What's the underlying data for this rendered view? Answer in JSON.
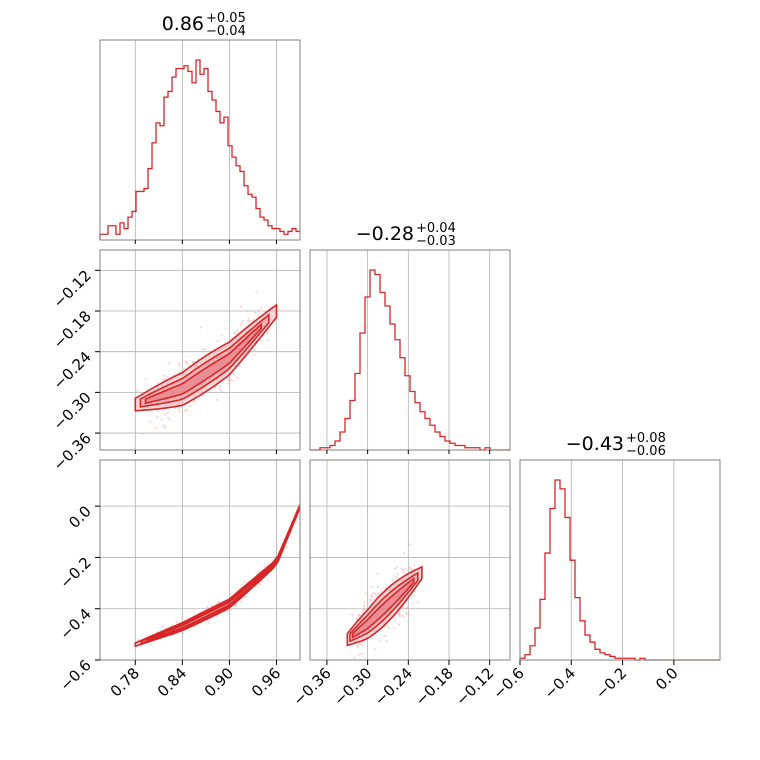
{
  "chart_data": {
    "type": "corner",
    "color": "#d62728",
    "color_light": "#f4a3a7",
    "grid": true,
    "parameters": [
      {
        "median": "0.86",
        "plus": "+0.05",
        "minus": "−0.04",
        "range": [
          0.735,
          0.99
        ],
        "ticks": [
          0.78,
          0.84,
          0.9,
          0.96
        ],
        "tick_labels": [
          "0.78",
          "0.84",
          "0.90",
          "0.96"
        ]
      },
      {
        "median": "−0.28",
        "plus": "+0.04",
        "minus": "−0.03",
        "range": [
          -0.385,
          -0.09
        ],
        "ticks": [
          -0.36,
          -0.3,
          -0.24,
          -0.18,
          -0.12
        ],
        "tick_labels": [
          "−0.36",
          "−0.30",
          "−0.24",
          "−0.18",
          "−0.12"
        ]
      },
      {
        "median": "−0.43",
        "plus": "+0.08",
        "minus": "−0.06",
        "range": [
          -0.6,
          0.18
        ],
        "ticks": [
          -0.6,
          -0.4,
          -0.2,
          0.0
        ],
        "tick_labels": [
          "−0.6",
          "−0.4",
          "−0.2",
          "0.0"
        ]
      }
    ],
    "histograms": [
      {
        "param": 0,
        "edges_range": [
          0.735,
          0.99
        ],
        "counts": [
          2,
          2,
          5,
          5,
          2,
          6,
          4,
          8,
          10,
          17,
          17,
          18,
          25,
          34,
          41,
          40,
          50,
          52,
          57,
          60,
          60,
          61,
          59,
          55,
          63,
          58,
          60,
          52,
          49,
          45,
          41,
          43,
          33,
          29,
          26,
          24,
          19,
          16,
          15,
          11,
          8,
          7,
          5,
          4,
          4,
          3,
          2,
          3,
          4,
          3
        ]
      },
      {
        "param": 1,
        "edges_range": [
          -0.385,
          -0.09
        ],
        "counts": [
          0,
          0,
          1,
          1,
          2,
          4,
          8,
          14,
          22,
          34,
          52,
          68,
          80,
          78,
          70,
          64,
          56,
          49,
          41,
          33,
          26,
          21,
          17,
          14,
          11,
          8,
          6,
          4,
          3,
          2,
          2,
          1,
          1,
          1,
          0,
          1,
          0,
          0,
          0,
          0
        ]
      },
      {
        "param": 2,
        "edges_range": [
          -0.6,
          0.18
        ],
        "counts": [
          1,
          3,
          8,
          18,
          34,
          60,
          85,
          101,
          96,
          80,
          56,
          35,
          22,
          14,
          10,
          6,
          4,
          3,
          2,
          1,
          1,
          1,
          1,
          0,
          1,
          0,
          0,
          0,
          0,
          0,
          0,
          0,
          0,
          0,
          0,
          0,
          0,
          0,
          0,
          0
        ]
      }
    ],
    "pairs": [
      {
        "x_param": 0,
        "y_param": 1,
        "ridge": [
          [
            0.78,
            -0.318
          ],
          [
            0.84,
            -0.295
          ],
          [
            0.9,
            -0.25
          ],
          [
            0.96,
            -0.18
          ]
        ],
        "spread": 0.012
      },
      {
        "x_param": 0,
        "y_param": 2,
        "ridge": [
          [
            0.78,
            -0.54
          ],
          [
            0.84,
            -0.47
          ],
          [
            0.9,
            -0.38
          ],
          [
            0.96,
            -0.22
          ],
          [
            0.99,
            0.0
          ]
        ],
        "spread": 0.008
      },
      {
        "x_param": 1,
        "y_param": 2,
        "ridge": [
          [
            -0.33,
            -0.52
          ],
          [
            -0.3,
            -0.46
          ],
          [
            -0.26,
            -0.36
          ],
          [
            -0.22,
            -0.26
          ]
        ],
        "spread": 0.03
      }
    ]
  }
}
